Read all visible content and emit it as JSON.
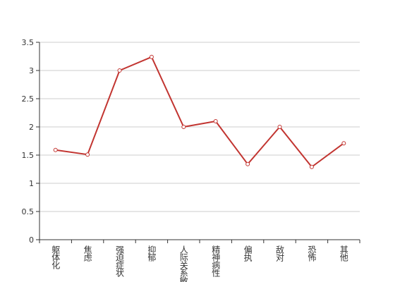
{
  "chart_data": {
    "type": "line",
    "categories": [
      "躯体化",
      "焦虑",
      "强迫症状",
      "抑郁",
      "人际关系敏感",
      "精神病性",
      "偏执",
      "敌对",
      "恐怖",
      "其他"
    ],
    "values": [
      1.59,
      1.51,
      3.0,
      3.24,
      2.0,
      2.1,
      1.34,
      2.0,
      1.29,
      1.71
    ],
    "color": "#c23531",
    "ylim": [
      0,
      3.5
    ],
    "yticks": [
      0,
      0.5,
      1,
      1.5,
      2,
      2.5,
      3,
      3.5
    ],
    "grid": true
  }
}
